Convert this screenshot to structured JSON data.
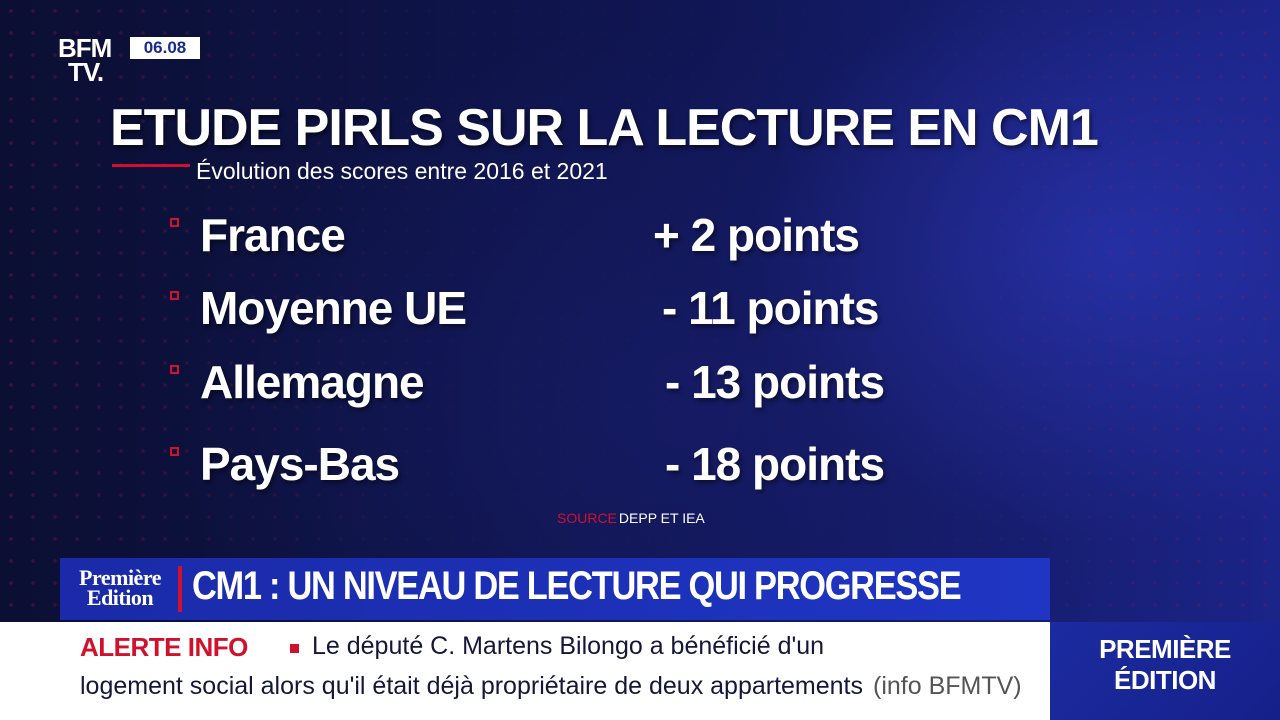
{
  "channel": {
    "logo_line1": "BFM",
    "logo_line2": "TV.",
    "time": "06.08"
  },
  "graphic": {
    "title": "ETUDE PIRLS SUR LA LECTURE EN CM1",
    "subtitle": "Évolution des scores entre 2016 et 2021",
    "rows": [
      {
        "country": "France",
        "score": "+ 2 points"
      },
      {
        "country": "Moyenne UE",
        "score": "- 11 points"
      },
      {
        "country": "Allemagne",
        "score": "- 13 points"
      },
      {
        "country": "Pays-Bas",
        "score": "- 18 points"
      }
    ],
    "source_label": "SOURCE",
    "source_value": "DEPP ET IEA"
  },
  "headline_bar": {
    "show_line1": "Première",
    "show_line2": "Edition",
    "headline": "CM1 : UN NIVEAU DE LECTURE QUI PROGRESSE"
  },
  "ticker": {
    "label": "ALERTE INFO",
    "line1": "Le député C. Martens Bilongo a bénéficié d'un",
    "line2": "logement social alors qu'il était déjà propriétaire de deux appartements",
    "credit": "(info BFMTV)"
  },
  "corner": {
    "line1": "PREMIÈRE",
    "line2": "ÉDITION"
  },
  "colors": {
    "accent_red": "#d1112b",
    "brand_blue": "#1f36c4",
    "background": "#070b2e"
  }
}
